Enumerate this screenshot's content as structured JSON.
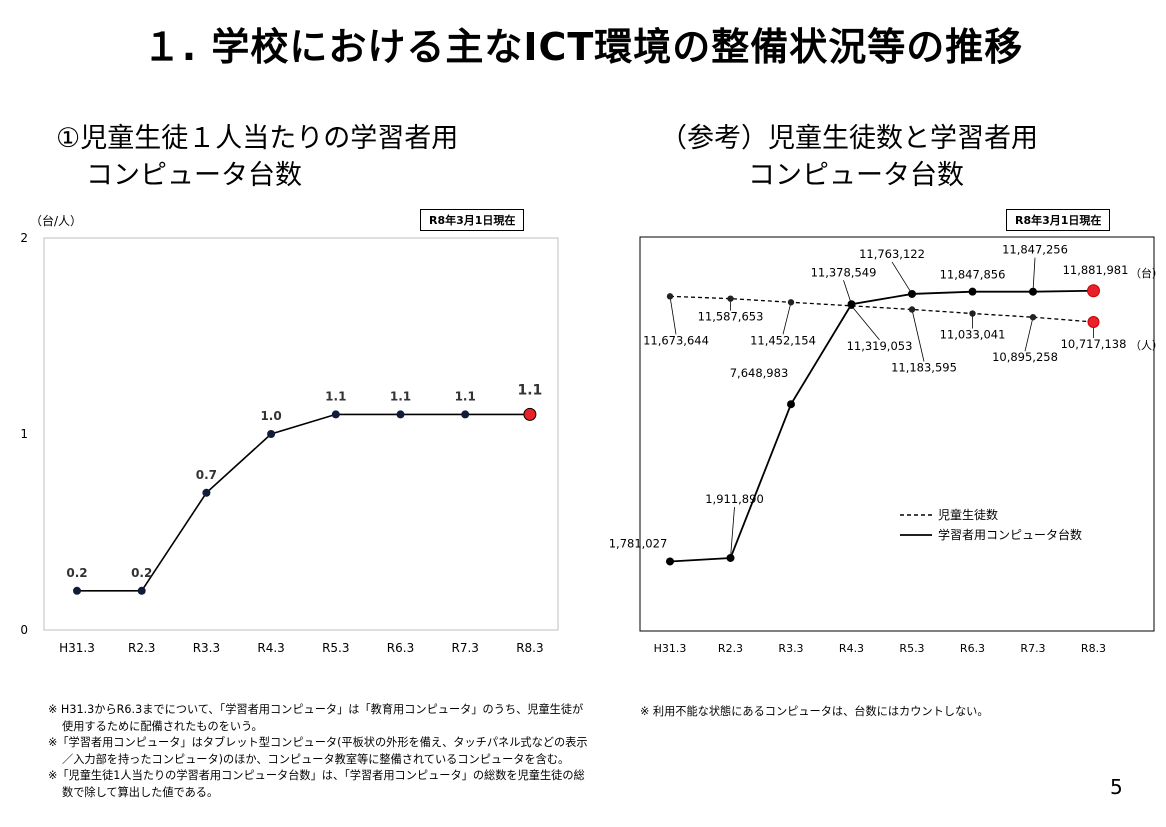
{
  "title": "１. 学校における主なICT環境の整備状況等の推移",
  "left": {
    "title_line1": "①児童生徒１人当たりの学習者用",
    "title_line2": "コンピュータ台数",
    "as_of": "R8年3月1日現在",
    "unit": "（台/人）",
    "notes": [
      "※ H31.3からR6.3までについて、「学習者用コンピュータ」は「教育用コンピュータ」のうち、児童生徒が使用するために配備されたものをいう。",
      "※「学習者用コンピュータ」はタブレット型コンピュータ(平板状の外形を備え、タッチパネル式などの表示／入力部を持ったコンピュータ)のほか、コンピュータ教室等に整備されているコンピュータを含む。",
      "※「児童生徒1人当たりの学習者用コンピュータ台数」は、「学習者用コンピュータ」の総数を児童生徒の総数で除して算出した値である。"
    ]
  },
  "right": {
    "title_line1": "（参考）児童生徒数と学習者用",
    "title_line2": "コンピュータ台数",
    "as_of": "R8年3月1日現在",
    "note": "※ 利用不能な状態にあるコンピュータは、台数にはカウントしない。"
  },
  "page_number": "5",
  "chart_data": [
    {
      "type": "line",
      "categories": [
        "H31.3",
        "R2.3",
        "R3.3",
        "R4.3",
        "R5.3",
        "R6.3",
        "R7.3",
        "R8.3"
      ],
      "series": [
        {
          "values": [
            0.2,
            0.2,
            0.7,
            1.0,
            1.1,
            1.1,
            1.1,
            1.1
          ],
          "labels": [
            "0.2",
            "0.2",
            "0.7",
            "1.0",
            "1.1",
            "1.1",
            "1.1",
            "1.1"
          ]
        }
      ],
      "ylabel": "（台/人）",
      "ylim": [
        0,
        2
      ],
      "yticks": [
        "0",
        "1",
        "2"
      ],
      "highlight_color": "#e8202a",
      "line_color": "#000000",
      "marker_color": "#111b3a"
    },
    {
      "type": "line",
      "categories": [
        "H31.3",
        "R2.3",
        "R3.3",
        "R4.3",
        "R5.3",
        "R6.3",
        "R7.3",
        "R8.3"
      ],
      "series": [
        {
          "name": "児童生徒数",
          "style": "dashed",
          "values": [
            11673644,
            11587653,
            11452154,
            11319053,
            11183595,
            11033041,
            10895258,
            10717138
          ],
          "labels": [
            "11,673,644",
            "11,587,653",
            "11,452,154",
            "11,319,053",
            "11,183,595",
            "11,033,041",
            "10,895,258",
            "10,717,138"
          ],
          "end_unit": "（人）"
        },
        {
          "name": "学習者用コンピュータ台数",
          "style": "solid",
          "values": [
            1781027,
            1911890,
            7648983,
            11378549,
            11763122,
            11847856,
            11847256,
            11881981
          ],
          "labels": [
            "1,781,027",
            "1,911,890",
            "7,648,983",
            "11,378,549",
            "11,763,122",
            "11,847,856",
            "11,847,256",
            "11,881,981"
          ],
          "end_unit": "（台）"
        }
      ],
      "legend": "center-right",
      "highlight_color": "#e8202a"
    }
  ]
}
